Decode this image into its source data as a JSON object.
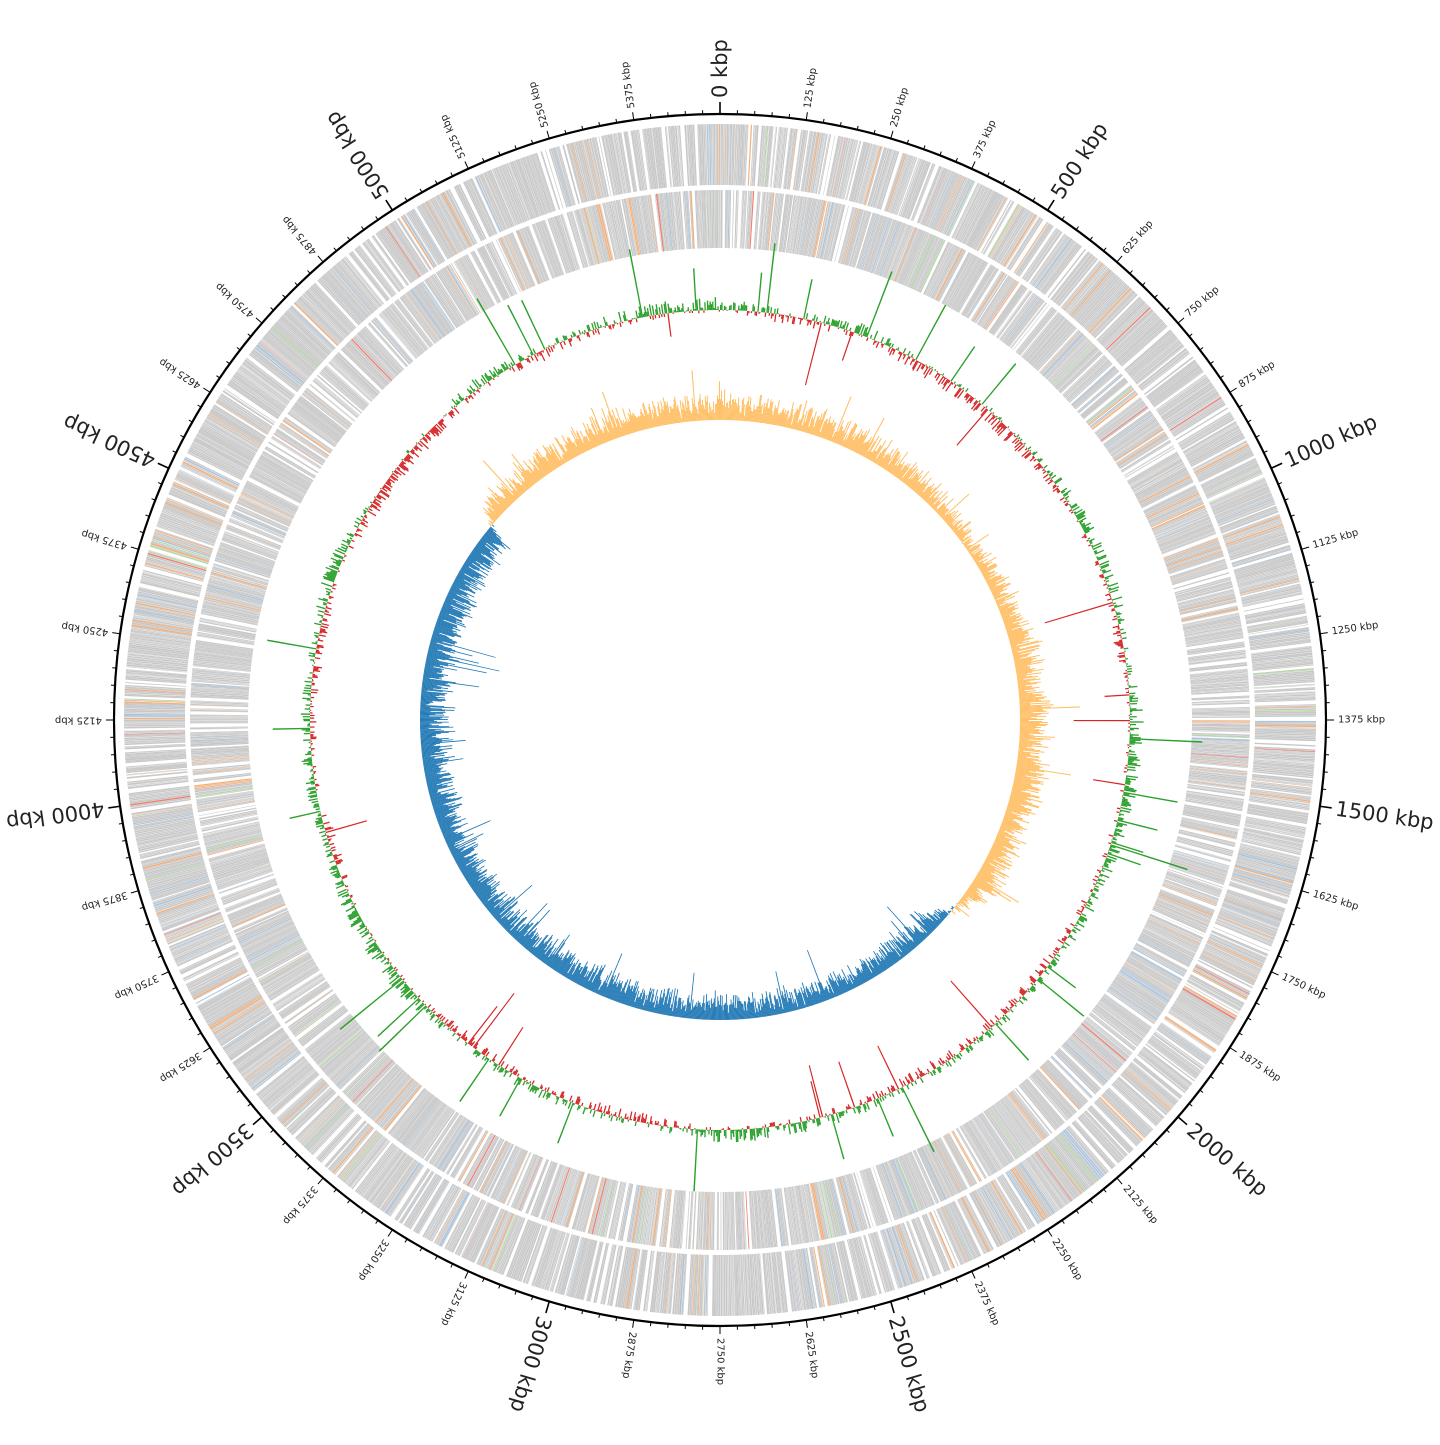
{
  "chart_data": {
    "type": "circular-genome-map",
    "genome_length_kbp": 5500,
    "major_tick_interval_kbp": 500,
    "minor_tick_interval_kbp": 125,
    "major_tick_labels": [
      "0 kbp",
      "500 kbp",
      "1000 kbp",
      "1500 kbp",
      "2000 kbp",
      "2500 kbp",
      "3000 kbp",
      "3500 kbp",
      "4000 kbp",
      "4500 kbp",
      "5000 kbp"
    ],
    "minor_tick_labels": [
      "125 kbp",
      "250 kbp",
      "375 kbp",
      "625 kbp",
      "750 kbp",
      "875 kbp",
      "1125 kbp",
      "1250 kbp",
      "1375 kbp",
      "1625 kbp",
      "1750 kbp",
      "1875 kbp",
      "2125 kbp",
      "2250 kbp",
      "2375 kbp",
      "2625 kbp",
      "2750 kbp",
      "2875 kbp",
      "3125 kbp",
      "3250 kbp",
      "3375 kbp",
      "3625 kbp",
      "3750 kbp",
      "3875 kbp",
      "4125 kbp",
      "4250 kbp",
      "4375 kbp",
      "4625 kbp",
      "4750 kbp",
      "4875 kbp",
      "5125 kbp",
      "5250 kbp",
      "5375 kbp"
    ],
    "tracks": [
      {
        "name": "",
        "kind": "features",
        "strand": "+"
      },
      {
        "name": "",
        "kind": "features",
        "strand": "-"
      },
      {
        "name": "",
        "kind": "gc_content"
      },
      {
        "name": "",
        "kind": "gc_skew"
      }
    ],
    "colors": {
      "feature": "#c8c8c8",
      "feature_orange": "#f4b07a",
      "feature_blue": "#a9c4de",
      "feature_green": "#b6d9a8",
      "feature_red": "#f08070",
      "gc_content_pos": "#2ca02c",
      "gc_content_neg": "#d62728",
      "gc_skew_pos": "#ffbf66",
      "gc_skew_neg": "#1f77b4",
      "axis": "#000000"
    },
    "gc_content_profile": [
      {
        "kbp": 0,
        "dev": 0.6
      },
      {
        "kbp": 150,
        "dev": -0.3
      },
      {
        "kbp": 300,
        "dev": 0.4
      },
      {
        "kbp": 450,
        "dev": -0.4
      },
      {
        "kbp": 600,
        "dev": -0.3
      },
      {
        "kbp": 700,
        "dev": -0.5
      },
      {
        "kbp": 800,
        "dev": 0.1
      },
      {
        "kbp": 950,
        "dev": 0.3
      },
      {
        "kbp": 1100,
        "dev": 0.3
      },
      {
        "kbp": 1250,
        "dev": -0.3
      },
      {
        "kbp": 1350,
        "dev": 0.6
      },
      {
        "kbp": 1500,
        "dev": 0.5
      },
      {
        "kbp": 1650,
        "dev": 0.3
      },
      {
        "kbp": 1800,
        "dev": 0.2
      },
      {
        "kbp": 1950,
        "dev": -0.2
      },
      {
        "kbp": 2100,
        "dev": 0.1
      },
      {
        "kbp": 2300,
        "dev": -0.2
      },
      {
        "kbp": 2500,
        "dev": 0.2
      },
      {
        "kbp": 2750,
        "dev": 0.5
      },
      {
        "kbp": 2950,
        "dev": -0.3
      },
      {
        "kbp": 3150,
        "dev": 0.2
      },
      {
        "kbp": 3350,
        "dev": -0.3
      },
      {
        "kbp": 3500,
        "dev": 0.5
      },
      {
        "kbp": 3700,
        "dev": 0.6
      },
      {
        "kbp": 3850,
        "dev": -0.2
      },
      {
        "kbp": 4000,
        "dev": 0.3
      },
      {
        "kbp": 4150,
        "dev": 0.1
      },
      {
        "kbp": 4300,
        "dev": -0.2
      },
      {
        "kbp": 4450,
        "dev": 0.6
      },
      {
        "kbp": 4600,
        "dev": -0.4
      },
      {
        "kbp": 4800,
        "dev": -0.4
      },
      {
        "kbp": 4950,
        "dev": 0.4
      },
      {
        "kbp": 5100,
        "dev": -0.3
      },
      {
        "kbp": 5300,
        "dev": 0.3
      },
      {
        "kbp": 5500,
        "dev": 0.6
      }
    ],
    "gc_skew_profile": [
      {
        "kbp": 0,
        "skew": 0.5
      },
      {
        "kbp": 500,
        "skew": 0.5
      },
      {
        "kbp": 800,
        "skew": 0.3
      },
      {
        "kbp": 1000,
        "skew": 0.4
      },
      {
        "kbp": 1300,
        "skew": 0.6
      },
      {
        "kbp": 1600,
        "skew": 0.6
      },
      {
        "kbp": 1900,
        "skew": 0.5
      },
      {
        "kbp": 2050,
        "skew": -0.5
      },
      {
        "kbp": 2300,
        "skew": -0.4
      },
      {
        "kbp": 2750,
        "skew": -0.5
      },
      {
        "kbp": 3200,
        "skew": -0.5
      },
      {
        "kbp": 3700,
        "skew": -0.5
      },
      {
        "kbp": 4100,
        "skew": -0.6
      },
      {
        "kbp": 4500,
        "skew": -0.6
      },
      {
        "kbp": 4720,
        "skew": -0.5
      },
      {
        "kbp": 4760,
        "skew": 0.5
      },
      {
        "kbp": 5000,
        "skew": 0.5
      },
      {
        "kbp": 5500,
        "skew": 0.5
      }
    ]
  }
}
